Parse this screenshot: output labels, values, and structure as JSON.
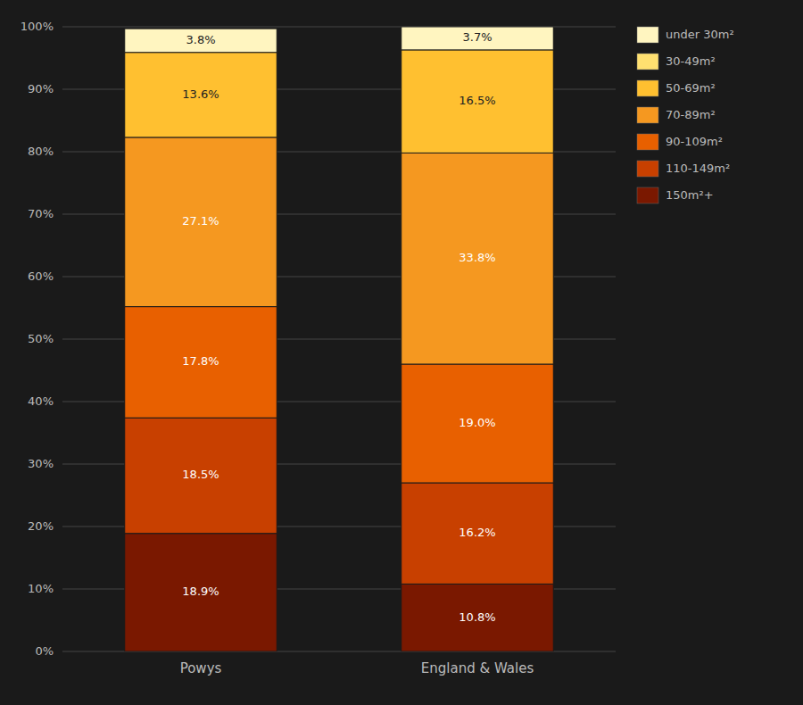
{
  "chart_data": {
    "type": "bar",
    "stacked": true,
    "data_labels": true,
    "grid": true,
    "legend": "right",
    "categories": [
      "Powys",
      "England & Wales"
    ],
    "series": [
      {
        "name": "150m²+",
        "color": "#7A1800",
        "values": [
          18.9,
          10.8
        ],
        "value_labels": [
          "18.9%",
          "10.8%"
        ]
      },
      {
        "name": "110-149m²",
        "color": "#C84000",
        "values": [
          18.5,
          16.2
        ],
        "value_labels": [
          "18.5%",
          "16.2%"
        ]
      },
      {
        "name": "90-109m²",
        "color": "#E86000",
        "values": [
          17.8,
          19.0
        ],
        "value_labels": [
          "17.8%",
          "19.0%"
        ]
      },
      {
        "name": "70-89m²",
        "color": "#F59820",
        "values": [
          27.1,
          33.8
        ],
        "value_labels": [
          "27.1%",
          "33.8%"
        ]
      },
      {
        "name": "50-69m²",
        "color": "#FFC030",
        "values": [
          13.6,
          16.5
        ],
        "value_labels": [
          "13.6%",
          "16.5%"
        ]
      },
      {
        "name": "30-49m²",
        "color": "#FFE070",
        "values": [
          0.0,
          0.0
        ]
      },
      {
        "name": "under 30m²",
        "color": "#FFF5C0",
        "values": [
          3.8,
          3.7
        ],
        "value_labels": [
          "3.8%",
          "3.7%"
        ]
      }
    ],
    "ylim": [
      0,
      100
    ],
    "yticks": [
      {
        "value": 0,
        "label": "0%"
      },
      {
        "value": 10,
        "label": "10%"
      },
      {
        "value": 20,
        "label": "20%"
      },
      {
        "value": 30,
        "label": "30%"
      },
      {
        "value": 40,
        "label": "40%"
      },
      {
        "value": 50,
        "label": "50%"
      },
      {
        "value": 60,
        "label": "60%"
      },
      {
        "value": 70,
        "label": "70%"
      },
      {
        "value": 80,
        "label": "80%"
      },
      {
        "value": 90,
        "label": "90%"
      },
      {
        "value": 100,
        "label": "100%"
      }
    ]
  }
}
